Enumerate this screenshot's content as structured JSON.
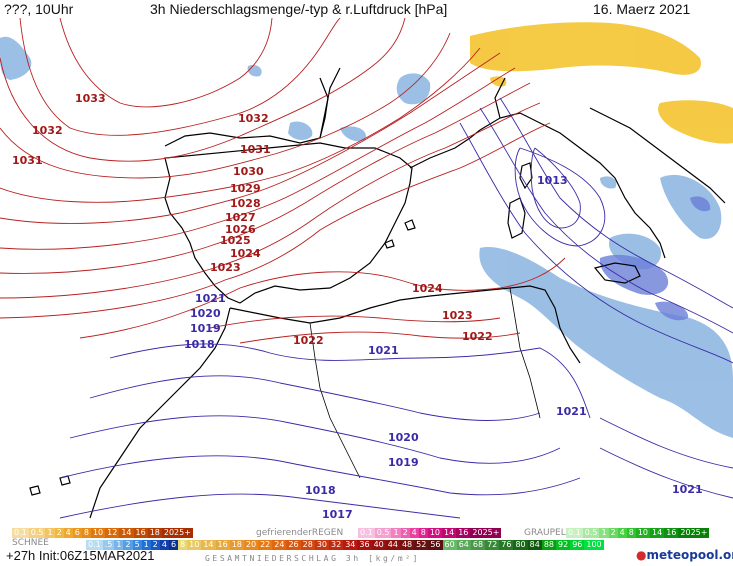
{
  "header": {
    "left": "???, 10Uhr",
    "title": "3h Niederschlagsmenge/-typ & r.Luftdruck [hPa]",
    "date": "16. Maerz 2021"
  },
  "map": {
    "isobars_red": [
      "1033",
      "1032",
      "1031",
      "1032",
      "1031",
      "1030",
      "1029",
      "1028",
      "1027",
      "1026",
      "1025",
      "1024",
      "1023",
      "1024",
      "1023",
      "1022",
      "1022"
    ],
    "isobars_blue": [
      "1021",
      "1020",
      "1019",
      "1018",
      "1021",
      "1020",
      "1019",
      "1018",
      "1017",
      "1021",
      "1021",
      "1013"
    ],
    "colors": {
      "high": "#a01818",
      "low": "#3a2aa8",
      "coast": "#000000",
      "precip_blue": "#8ab4e0",
      "precip_yellow": "#f4c430"
    }
  },
  "legend": {
    "schnee_label": "SCHNEE",
    "schnee_scale": [
      "0.1",
      "0.5",
      "1",
      "2",
      "4",
      "6",
      "8",
      "10",
      "12",
      "14",
      "16",
      "18",
      "2025+"
    ],
    "freezing_label": "gefrierenderREGEN",
    "freezing_scale": [
      "0.1",
      "0.5",
      "1",
      "2",
      "4",
      "8",
      "10",
      "14",
      "16",
      "2025+"
    ],
    "graupel_label": "GRAUPEL",
    "graupel_scale": [
      "0.1",
      "0.5",
      "1",
      "2",
      "4",
      "8",
      "10",
      "14",
      "16",
      "2025+"
    ],
    "rain_scale": [
      "0.1",
      ".5",
      "1",
      "2",
      "5",
      "1",
      "2",
      "4",
      "6",
      "8",
      "10",
      "14",
      "16",
      "18",
      "20",
      "22",
      "24",
      "26",
      "28",
      "30",
      "32",
      "34",
      "36",
      "40",
      "44",
      "48",
      "52",
      "56",
      "60",
      "64",
      "68",
      "72",
      "76",
      "80",
      "84",
      "88",
      "92",
      "96",
      "100"
    ],
    "total_label": "GESAMTNIEDERSCHLAG 3h [kg/m²]"
  },
  "footer": {
    "init": "+27h Init:06Z15MAR2021",
    "logo_main": "meteopool",
    "logo_suffix": ".org"
  }
}
